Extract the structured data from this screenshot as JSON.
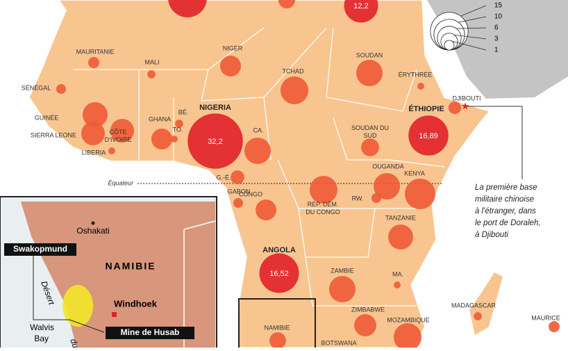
{
  "legend": {
    "values": [
      15,
      10,
      6,
      3,
      1
    ]
  },
  "bubbles": [
    {
      "name": null,
      "value": 16
    },
    {
      "name": null,
      "value": 3
    },
    {
      "name": null,
      "value": 12.2,
      "value_label": "12,2"
    },
    {
      "name": "MAURITANIE",
      "value": 1.3
    },
    {
      "name": "MALI",
      "value": 0.7
    },
    {
      "name": "NIGER",
      "value": 4.6
    },
    {
      "name": "SOUDAN",
      "value": 7.4
    },
    {
      "name": "TCHAD",
      "value": 8.2
    },
    {
      "name": "ÉRYTHRÉE",
      "value": 0.5
    },
    {
      "name": "SÉNÉGAL",
      "value": 1
    },
    {
      "name": "DJIBOUTI",
      "value": 1.7
    },
    {
      "name": "GUINÉE",
      "value": 6.6
    },
    {
      "name": "SIERRA LEONE",
      "value": 5.9
    },
    {
      "name": "LIBERIA",
      "value": 0.5
    },
    {
      "name": "CÔTE D'IVOIRE",
      "value": 5.9
    },
    {
      "name": "GHANA",
      "value": 4.6
    },
    {
      "name": "BÉ.",
      "value": 0.7
    },
    {
      "name": "TO.",
      "value": 0.5
    },
    {
      "name": "NIGERIA",
      "value": 32.2,
      "value_label": "32,2"
    },
    {
      "name": "CA.",
      "value": 7.4
    },
    {
      "name": "ÉTHIOPIE",
      "value": 16.89,
      "value_label": "16,89"
    },
    {
      "name": "SOUDAN DU SUD",
      "value": 3.4
    },
    {
      "name": "G.-É.",
      "value": 2
    },
    {
      "name": "GABON",
      "value": 1
    },
    {
      "name": "CONGO",
      "value": 4.6
    },
    {
      "name": "OUGANDA",
      "value": 7.4
    },
    {
      "name": "KENYA",
      "value": 9.9
    },
    {
      "name": "RÉP. DÉM. DU CONGO",
      "value": 8.2
    },
    {
      "name": "RW.",
      "value": 1
    },
    {
      "name": "TANZANIE",
      "value": 6.6
    },
    {
      "name": "ANGOLA",
      "value": 16.52,
      "value_label": "16,52"
    },
    {
      "name": "ZAMBIE",
      "value": 7.4
    },
    {
      "name": "MA.",
      "value": 0.5
    },
    {
      "name": "ZIMBABWE",
      "value": 5.2
    },
    {
      "name": "MOZAMBIQUE",
      "value": 8.2
    },
    {
      "name": "MADAGASCAR",
      "value": 0.7
    },
    {
      "name": "MAURICE",
      "value": 1.3
    },
    {
      "name": "NAMIBIE",
      "value": 2.9
    },
    {
      "name": "BOTSWANA",
      "value": null
    }
  ],
  "equator": "Équateur",
  "annotation": [
    "La première base",
    "militaire chinoise",
    "à l'étranger, dans",
    "le port de Doraleh,",
    "à Djibouti"
  ],
  "inset": {
    "country": "NAMIBIE",
    "cities": [
      "Oshakati",
      "Windhoek",
      "Walvis",
      "Bay"
    ],
    "desert": "Désert",
    "desert2": "du",
    "swakopmund": "Swakopmund",
    "mine": "Mine de Husab"
  }
}
